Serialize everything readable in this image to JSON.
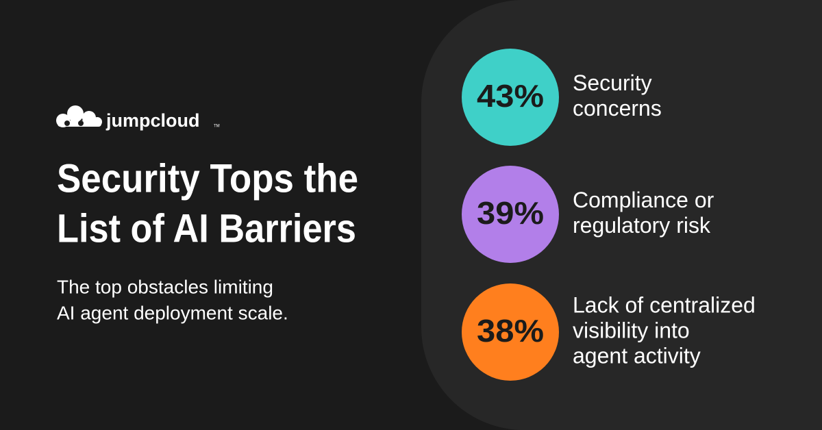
{
  "logo": {
    "text": "jumpcloud",
    "trademark": "TM"
  },
  "title": [
    "Security Tops the",
    "List of AI Barriers"
  ],
  "subtitle": [
    "The top obstacles limiting",
    "AI agent deployment scale."
  ],
  "items": [
    {
      "value": "43%",
      "color": "#3fd0c8",
      "label": [
        "Security",
        "concerns"
      ]
    },
    {
      "value": "39%",
      "color": "#b27fe9",
      "label": [
        "Compliance or",
        "regulatory risk"
      ]
    },
    {
      "value": "38%",
      "color": "#ff7f1e",
      "label": [
        "Lack of centralized",
        "visibility into",
        "agent activity"
      ]
    }
  ]
}
